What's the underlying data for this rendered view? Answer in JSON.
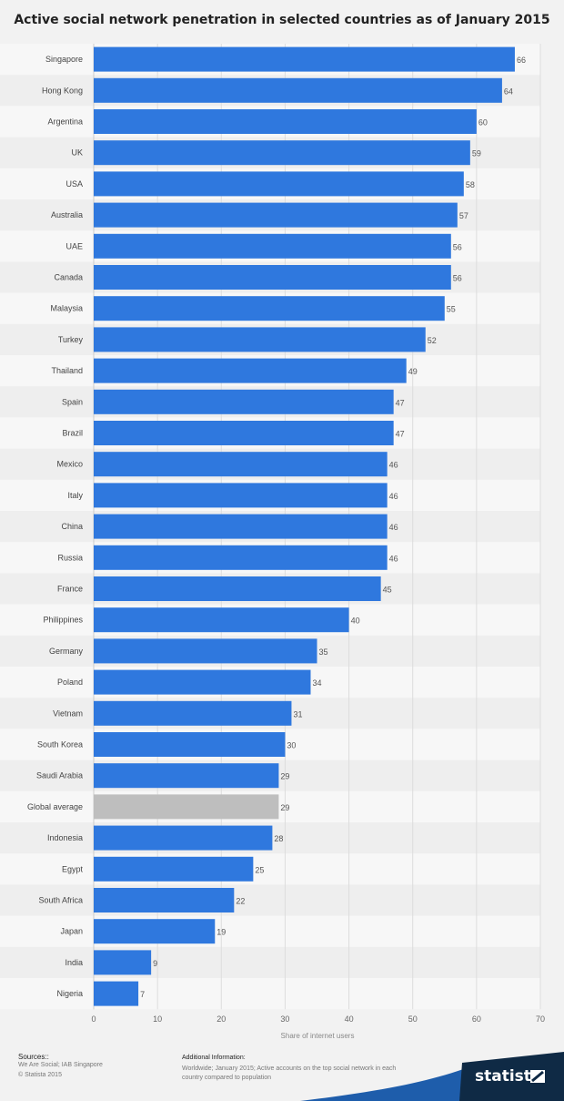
{
  "chart_data": {
    "type": "bar",
    "orientation": "horizontal",
    "title": "Active social network penetration in selected countries as of January 2015",
    "xlabel": "Share of internet users",
    "ylabel": "",
    "xlim": [
      0,
      70
    ],
    "x_ticks": [
      0,
      10,
      20,
      30,
      40,
      50,
      60,
      70
    ],
    "grid": true,
    "categories": [
      "Singapore",
      "Hong Kong",
      "Argentina",
      "UK",
      "USA",
      "Australia",
      "UAE",
      "Canada",
      "Malaysia",
      "Turkey",
      "Thailand",
      "Spain",
      "Brazil",
      "Mexico",
      "Italy",
      "China",
      "Russia",
      "France",
      "Philippines",
      "Germany",
      "Poland",
      "Vietnam",
      "South Korea",
      "Saudi Arabia",
      "Global average",
      "Indonesia",
      "Egypt",
      "South Africa",
      "Japan",
      "India",
      "Nigeria"
    ],
    "values": [
      66,
      64,
      60,
      59,
      58,
      57,
      56,
      56,
      55,
      52,
      49,
      47,
      47,
      46,
      46,
      46,
      46,
      45,
      40,
      35,
      34,
      31,
      30,
      29,
      29,
      28,
      25,
      22,
      19,
      9,
      7
    ],
    "highlight_category": "Global average",
    "colors": {
      "bar": "#2f78de",
      "highlight": "#bebebe"
    }
  },
  "footer": {
    "sources_heading": "Sources::",
    "sources": [
      "We Are Social; IAB Singapore",
      "© Statista 2015"
    ],
    "additional_heading": "Additional Information:",
    "additional_text": "Worldwide; January 2015; Active accounts on the top social network in each country compared to population",
    "logo": "statista"
  }
}
